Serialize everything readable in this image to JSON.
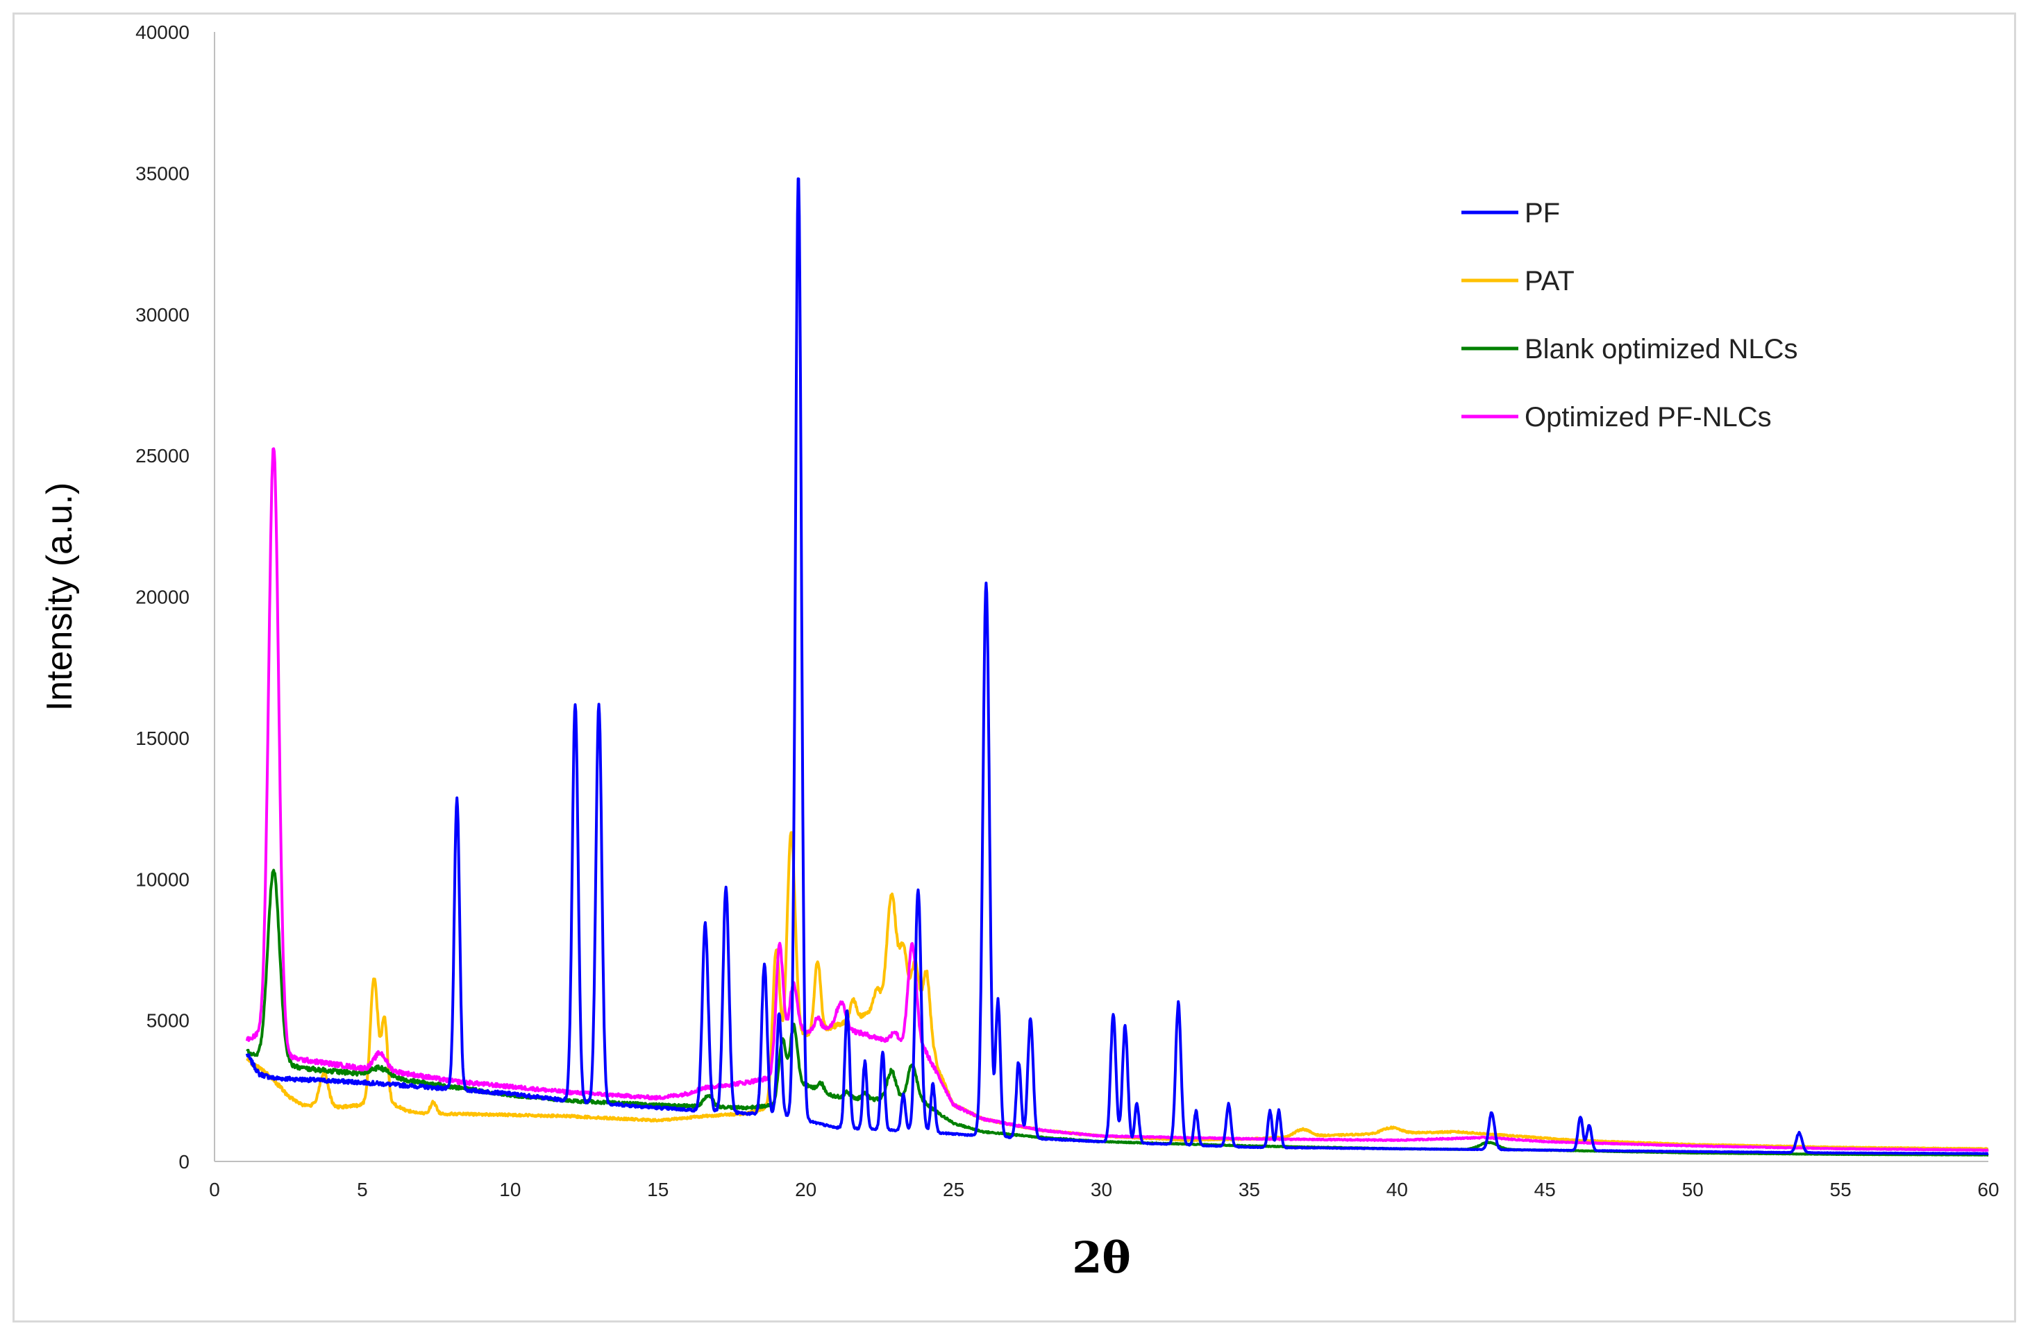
{
  "chart_data": {
    "type": "line",
    "title": "",
    "xlabel": "2θ",
    "ylabel": "Intensity (a.u.)",
    "xlim": [
      0,
      60
    ],
    "ylim": [
      0,
      40000
    ],
    "x_ticks": [
      0,
      5,
      10,
      15,
      20,
      25,
      30,
      35,
      40,
      45,
      50,
      55,
      60
    ],
    "y_ticks": [
      0,
      5000,
      10000,
      15000,
      20000,
      25000,
      30000,
      35000,
      40000
    ],
    "grid": false,
    "legend_position": "top-right",
    "series": [
      {
        "name": "PF",
        "color": "#0000FF",
        "baseline": [
          [
            1.1,
            3800
          ],
          [
            1.5,
            3100
          ],
          [
            2,
            2950
          ],
          [
            3,
            2900
          ],
          [
            5,
            2800
          ],
          [
            7,
            2650
          ],
          [
            10,
            2400
          ],
          [
            12,
            2150
          ],
          [
            15,
            1900
          ],
          [
            16.5,
            1800
          ],
          [
            18,
            1700
          ],
          [
            19,
            1650
          ],
          [
            19.5,
            1600
          ],
          [
            20,
            1450
          ],
          [
            21,
            1200
          ],
          [
            22,
            1150
          ],
          [
            24,
            1050
          ],
          [
            26,
            900
          ],
          [
            28,
            800
          ],
          [
            30,
            700
          ],
          [
            35,
            500
          ],
          [
            40,
            450
          ],
          [
            45,
            400
          ],
          [
            50,
            350
          ],
          [
            55,
            300
          ],
          [
            60,
            280
          ]
        ],
        "peaks": [
          [
            8.2,
            10300,
            0.09
          ],
          [
            12.2,
            14100,
            0.1
          ],
          [
            13.0,
            14100,
            0.1
          ],
          [
            16.6,
            6600,
            0.1
          ],
          [
            17.3,
            8000,
            0.1
          ],
          [
            18.6,
            5300,
            0.09
          ],
          [
            19.1,
            3600,
            0.08
          ],
          [
            19.75,
            33500,
            0.1
          ],
          [
            21.4,
            4200,
            0.08
          ],
          [
            22.0,
            2400,
            0.07
          ],
          [
            22.6,
            2800,
            0.07
          ],
          [
            23.3,
            1300,
            0.07
          ],
          [
            23.8,
            8600,
            0.1
          ],
          [
            24.3,
            1700,
            0.07
          ],
          [
            26.1,
            19600,
            0.11
          ],
          [
            26.5,
            4800,
            0.08
          ],
          [
            27.2,
            2700,
            0.08
          ],
          [
            27.6,
            4200,
            0.09
          ],
          [
            30.4,
            4500,
            0.09
          ],
          [
            30.8,
            4100,
            0.09
          ],
          [
            31.2,
            1400,
            0.07
          ],
          [
            32.6,
            5000,
            0.09
          ],
          [
            33.2,
            1200,
            0.07
          ],
          [
            34.3,
            1500,
            0.08
          ],
          [
            35.7,
            1300,
            0.07
          ],
          [
            36.0,
            1300,
            0.07
          ],
          [
            43.2,
            1300,
            0.1
          ],
          [
            46.2,
            1200,
            0.08
          ],
          [
            46.5,
            900,
            0.08
          ],
          [
            53.6,
            700,
            0.1
          ]
        ]
      },
      {
        "name": "PAT",
        "color": "#FFC000",
        "baseline": [
          [
            1.1,
            3600
          ],
          [
            1.5,
            3300
          ],
          [
            2,
            2900
          ],
          [
            2.5,
            2300
          ],
          [
            3,
            2000
          ],
          [
            4,
            1900
          ],
          [
            5,
            2000
          ],
          [
            6,
            2050
          ],
          [
            6.5,
            1800
          ],
          [
            7,
            1700
          ],
          [
            10,
            1650
          ],
          [
            12,
            1600
          ],
          [
            15,
            1450
          ],
          [
            16.5,
            1600
          ],
          [
            18,
            1700
          ],
          [
            19,
            2000
          ],
          [
            19.5,
            4200
          ],
          [
            20,
            4500
          ],
          [
            21,
            4800
          ],
          [
            22,
            5200
          ],
          [
            23,
            6000
          ],
          [
            24,
            5400
          ],
          [
            24.5,
            3200
          ],
          [
            25,
            2000
          ],
          [
            26,
            1500
          ],
          [
            28,
            1100
          ],
          [
            30,
            900
          ],
          [
            33,
            750
          ],
          [
            35,
            800
          ],
          [
            37,
            900
          ],
          [
            40,
            1000
          ],
          [
            42,
            1050
          ],
          [
            44,
            900
          ],
          [
            46,
            750
          ],
          [
            50,
            600
          ],
          [
            55,
            500
          ],
          [
            60,
            450
          ]
        ],
        "peaks": [
          [
            3.7,
            1200,
            0.15
          ],
          [
            5.4,
            4500,
            0.13
          ],
          [
            5.75,
            3000,
            0.1
          ],
          [
            7.4,
            400,
            0.1
          ],
          [
            19.0,
            5500,
            0.12
          ],
          [
            19.5,
            7500,
            0.14
          ],
          [
            20.4,
            2500,
            0.1
          ],
          [
            21.6,
            700,
            0.1
          ],
          [
            22.4,
            600,
            0.1
          ],
          [
            22.9,
            3500,
            0.15
          ],
          [
            23.3,
            1800,
            0.12
          ],
          [
            23.7,
            1500,
            0.12
          ],
          [
            24.1,
            1700,
            0.1
          ],
          [
            36.8,
            250,
            0.25
          ],
          [
            39.8,
            200,
            0.3
          ]
        ]
      },
      {
        "name": "Blank optimized NLCs",
        "color": "#008000",
        "baseline": [
          [
            1.1,
            3900
          ],
          [
            1.5,
            3600
          ],
          [
            2.5,
            3400
          ],
          [
            3,
            3300
          ],
          [
            5,
            3100
          ],
          [
            8,
            2650
          ],
          [
            10,
            2350
          ],
          [
            12,
            2150
          ],
          [
            15,
            2000
          ],
          [
            16.5,
            1950
          ],
          [
            18,
            1900
          ],
          [
            19,
            2000
          ],
          [
            19.5,
            2800
          ],
          [
            20,
            2700
          ],
          [
            21,
            2300
          ],
          [
            22,
            2200
          ],
          [
            23,
            2200
          ],
          [
            24,
            2100
          ],
          [
            24.5,
            1700
          ],
          [
            25,
            1350
          ],
          [
            26,
            1050
          ],
          [
            28,
            850
          ],
          [
            30,
            700
          ],
          [
            35,
            550
          ],
          [
            40,
            450
          ],
          [
            45,
            400
          ],
          [
            50,
            300
          ],
          [
            55,
            250
          ],
          [
            60,
            230
          ]
        ],
        "peaks": [
          [
            2.0,
            6800,
            0.2
          ],
          [
            5.6,
            300,
            0.3
          ],
          [
            16.7,
            400,
            0.15
          ],
          [
            19.2,
            2000,
            0.12
          ],
          [
            19.6,
            2000,
            0.12
          ],
          [
            20.5,
            300,
            0.1
          ],
          [
            21.4,
            200,
            0.1
          ],
          [
            22.0,
            200,
            0.1
          ],
          [
            22.9,
            1000,
            0.15
          ],
          [
            23.6,
            1300,
            0.15
          ],
          [
            43.1,
            250,
            0.3
          ]
        ]
      },
      {
        "name": "Optimized PF-NLCs",
        "color": "#FF00FF",
        "baseline": [
          [
            1.1,
            4300
          ],
          [
            1.5,
            4500
          ],
          [
            2.5,
            3700
          ],
          [
            3,
            3600
          ],
          [
            4,
            3450
          ],
          [
            5,
            3300
          ],
          [
            6,
            3200
          ],
          [
            8,
            2850
          ],
          [
            10,
            2650
          ],
          [
            12,
            2450
          ],
          [
            15,
            2250
          ],
          [
            16,
            2400
          ],
          [
            16.5,
            2600
          ],
          [
            18,
            2800
          ],
          [
            19,
            3000
          ],
          [
            19.5,
            5200
          ],
          [
            20,
            4600
          ],
          [
            21,
            4800
          ],
          [
            22,
            4500
          ],
          [
            23,
            4200
          ],
          [
            24,
            4000
          ],
          [
            24.5,
            3000
          ],
          [
            25,
            2000
          ],
          [
            26,
            1500
          ],
          [
            28,
            1100
          ],
          [
            30,
            900
          ],
          [
            35,
            800
          ],
          [
            40,
            750
          ],
          [
            43,
            850
          ],
          [
            45,
            700
          ],
          [
            50,
            550
          ],
          [
            55,
            450
          ],
          [
            60,
            400
          ]
        ],
        "peaks": [
          [
            2.0,
            21200,
            0.17
          ],
          [
            5.6,
            600,
            0.2
          ],
          [
            19.1,
            4200,
            0.12
          ],
          [
            19.6,
            1200,
            0.1
          ],
          [
            20.4,
            400,
            0.1
          ],
          [
            21.2,
            900,
            0.15
          ],
          [
            23.0,
            400,
            0.12
          ],
          [
            23.6,
            3600,
            0.14
          ]
        ]
      }
    ]
  }
}
